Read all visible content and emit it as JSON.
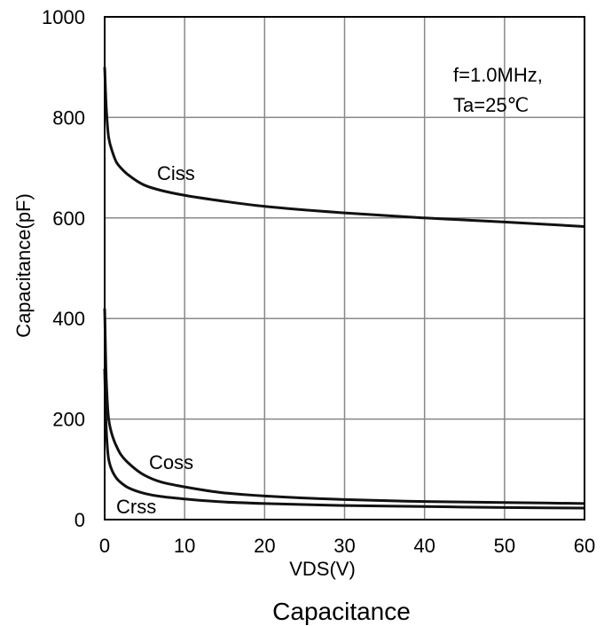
{
  "chart_data": {
    "type": "line",
    "title": "Capacitance",
    "xlabel": "VDS(V)",
    "ylabel": "Capacitance(pF)",
    "xlim": [
      0,
      60
    ],
    "ylim": [
      0,
      1000
    ],
    "xticks": [
      "0",
      "10",
      "20",
      "30",
      "40",
      "50",
      "60"
    ],
    "yticks": [
      "0",
      "200",
      "400",
      "600",
      "800",
      "1000"
    ],
    "grid": true,
    "annotation": [
      "f=1.0MHz,",
      "Ta=25℃"
    ],
    "series": [
      {
        "name": "Ciss",
        "x": [
          0,
          0.2,
          0.5,
          1,
          1.5,
          2,
          3,
          5,
          7,
          10,
          15,
          20,
          30,
          40,
          50,
          60
        ],
        "y": [
          900,
          820,
          760,
          730,
          710,
          700,
          685,
          665,
          655,
          645,
          633,
          623,
          610,
          600,
          592,
          583
        ]
      },
      {
        "name": "Coss",
        "x": [
          0,
          0.2,
          0.5,
          1,
          1.5,
          2,
          3,
          5,
          7,
          10,
          15,
          20,
          30,
          40,
          50,
          60
        ],
        "y": [
          420,
          280,
          200,
          165,
          145,
          130,
          112,
          88,
          75,
          65,
          53,
          47,
          40,
          36,
          34,
          32
        ]
      },
      {
        "name": "Crss",
        "x": [
          0,
          0.2,
          0.5,
          1,
          1.5,
          2,
          3,
          5,
          7,
          10,
          15,
          20,
          30,
          40,
          50,
          60
        ],
        "y": [
          300,
          180,
          120,
          95,
          82,
          74,
          63,
          52,
          46,
          41,
          35,
          32,
          28,
          26,
          24,
          23
        ]
      }
    ]
  }
}
